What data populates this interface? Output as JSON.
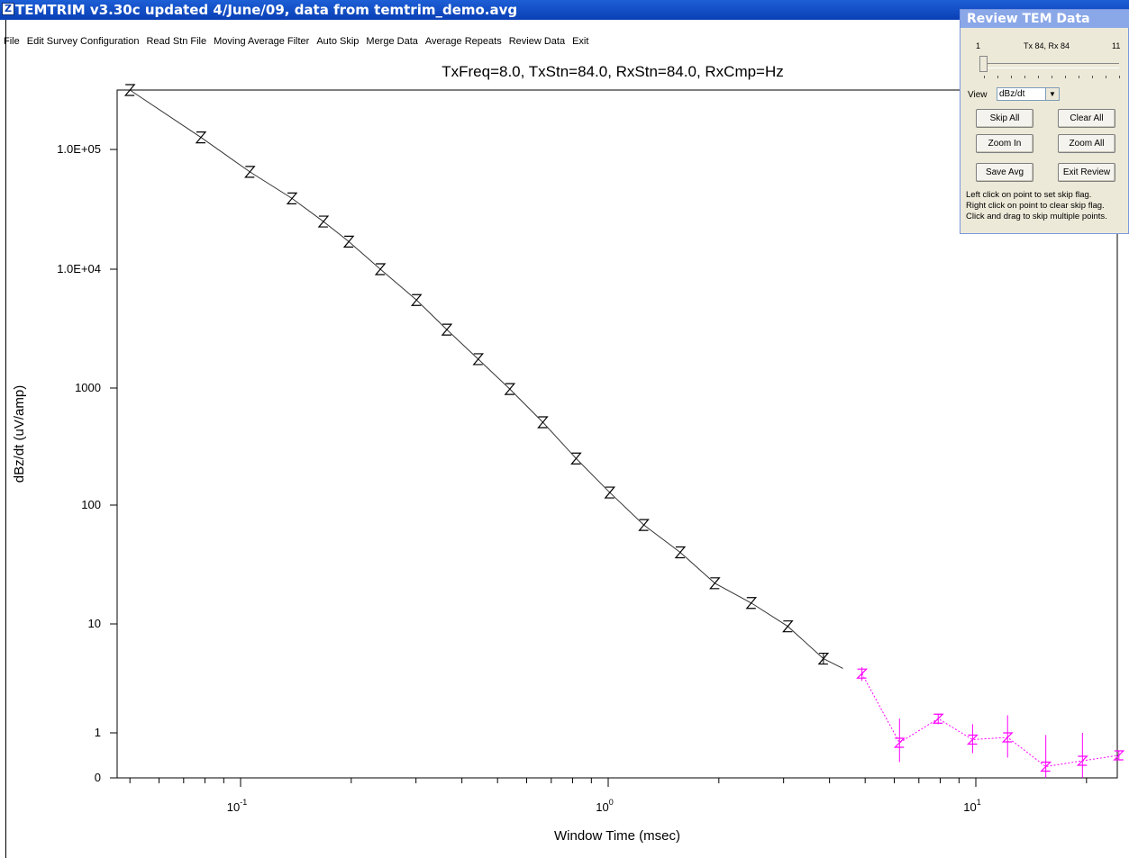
{
  "window": {
    "title": "TEMTRIM v3.30c updated 4/June/09, data from temtrim_demo.avg",
    "icon": "app-logo-icon"
  },
  "menu": [
    "File",
    "Edit Survey Configuration",
    "Read Stn File",
    "Moving Average Filter",
    "Auto Skip",
    "Merge Data",
    "Average Repeats",
    "Review Data",
    "Exit"
  ],
  "chart_data": {
    "type": "line",
    "title": "TxFreq=8.0, TxStn=84.0, RxStn=84.0, RxCmp=Hz",
    "xlabel": "Window Time (msec)",
    "ylabel": "dBz/dt (uV/amp)",
    "x_scale": "log",
    "xlim": [
      0.05,
      25
    ],
    "x_ticks": [
      {
        "value": 0.1,
        "base": "10",
        "exp": "-1"
      },
      {
        "value": 1,
        "base": "10",
        "exp": "0"
      },
      {
        "value": 10,
        "base": "10",
        "exp": "1"
      }
    ],
    "y_ticks": [
      {
        "label": "1.0E+05",
        "value": 100000
      },
      {
        "label": "1.0E+04",
        "value": 10000
      },
      {
        "label": "1000",
        "value": 1000
      },
      {
        "label": "100",
        "value": 100
      },
      {
        "label": "10",
        "value": 10
      },
      {
        "label": "1",
        "value": 1
      },
      {
        "label": "0",
        "value": 0
      }
    ],
    "series": [
      {
        "style": "solid",
        "color": "#000000",
        "marker": "hourglass",
        "points": [
          [
            0.05,
            300000
          ],
          [
            0.078,
            125000
          ],
          [
            0.106,
            65000
          ],
          [
            0.138,
            39000
          ],
          [
            0.168,
            25000
          ],
          [
            0.197,
            17000
          ],
          [
            0.24,
            10000
          ],
          [
            0.301,
            5500
          ],
          [
            0.364,
            3100
          ],
          [
            0.443,
            1750
          ],
          [
            0.54,
            980
          ],
          [
            0.664,
            510
          ],
          [
            0.818,
            250
          ],
          [
            1.01,
            128
          ],
          [
            1.25,
            68
          ],
          [
            1.57,
            40
          ],
          [
            1.95,
            22
          ],
          [
            2.45,
            15
          ],
          [
            3.08,
            9.5
          ],
          [
            3.85,
            4.8
          ]
        ],
        "skipped_error_bar": [
          3.85,
          4.3,
          5.4
        ]
      },
      {
        "style": "dotted",
        "color": "#ff00ff",
        "marker": "z",
        "points": [
          [
            4.9,
            3.5
          ],
          [
            6.2,
            0.78
          ],
          [
            7.9,
            1.35
          ],
          [
            9.8,
            0.85
          ],
          [
            12.2,
            0.9
          ],
          [
            15.5,
            0.25
          ],
          [
            19.5,
            0.38
          ],
          [
            24.5,
            0.5
          ]
        ],
        "error_bars": [
          [
            4.9,
            3.0,
            4.0
          ],
          [
            6.2,
            0.35,
            1.35
          ],
          [
            7.9,
            1.2,
            1.5
          ],
          [
            9.8,
            0.55,
            1.2
          ],
          [
            12.2,
            0.45,
            1.45
          ],
          [
            15.5,
            0.0,
            0.95
          ],
          [
            19.5,
            0.0,
            1.0
          ],
          [
            24.5,
            0.4,
            0.6
          ]
        ]
      }
    ],
    "line_between": [
      [
        3.85,
        4.8
      ],
      [
        4.35,
        3.9
      ]
    ],
    "grid": false
  },
  "review": {
    "title": "Review TEM Data",
    "slider_min": "1",
    "slider_label": "Tx 84, Rx 84",
    "slider_max": "11",
    "slider_position": 1,
    "view_label": "View",
    "view_value": "dBz/dt",
    "buttons": {
      "skip_all": "Skip All",
      "clear_all": "Clear All",
      "zoom_in": "Zoom In",
      "zoom_all": "Zoom All",
      "save_avg": "Save Avg",
      "exit_review": "Exit Review"
    },
    "help": [
      "Left click on point to set skip flag.",
      "Right click on point to clear skip flag.",
      "Click and drag to skip multiple points."
    ]
  }
}
